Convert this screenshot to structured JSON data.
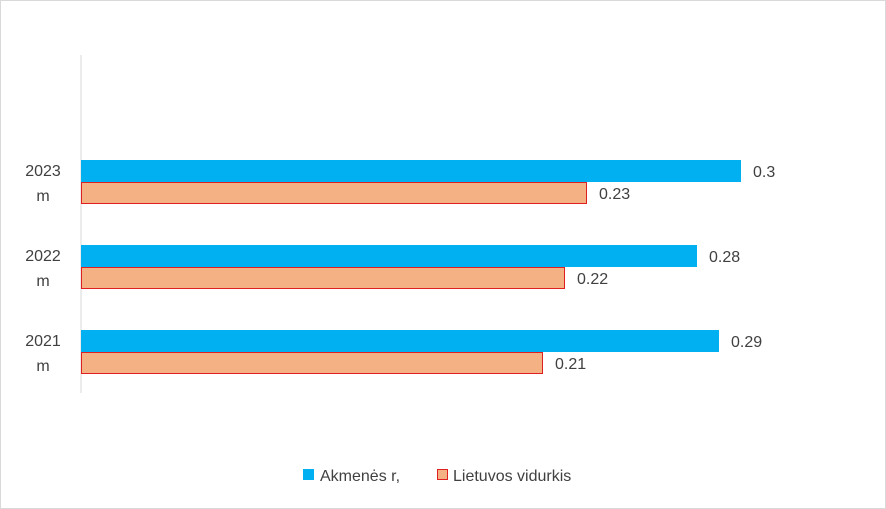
{
  "chart_data": {
    "type": "bar",
    "orientation": "horizontal",
    "categories": [
      {
        "line1": "2023",
        "line2": "m"
      },
      {
        "line1": "2022",
        "line2": "m"
      },
      {
        "line1": "2021",
        "line2": "m"
      }
    ],
    "series": [
      {
        "name": "Akmenės r,",
        "values": [
          0.3,
          0.28,
          0.29
        ],
        "value_labels": [
          "0.3",
          "0.28",
          "0.29"
        ],
        "color": "#00b0f0",
        "stroke": "#00b0f0"
      },
      {
        "name": "Lietuvos vidurkis",
        "values": [
          0.23,
          0.22,
          0.21
        ],
        "value_labels": [
          "0.23",
          "0.22",
          "0.21"
        ],
        "color": "#f4b183",
        "stroke": "#e02020"
      }
    ],
    "xlim": [
      0,
      0.35
    ],
    "grid": false,
    "legend_position": "bottom"
  }
}
